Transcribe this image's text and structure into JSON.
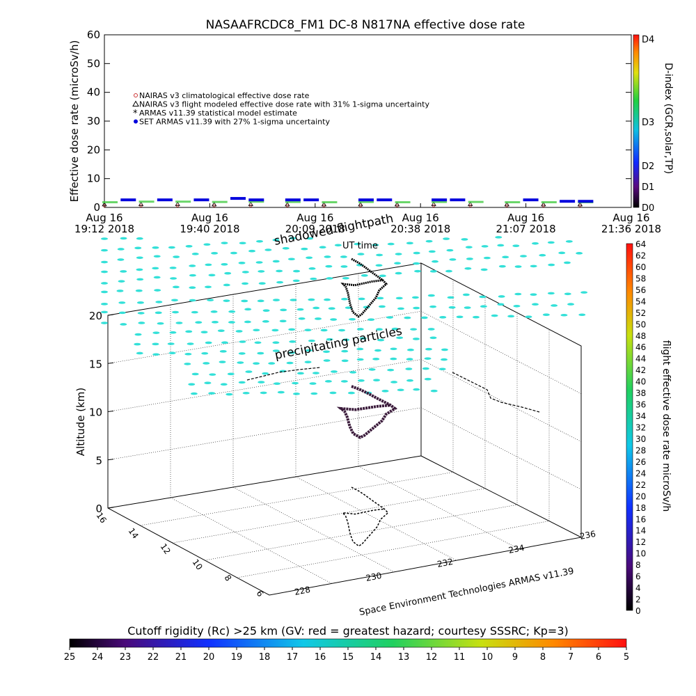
{
  "chart_data": [
    {
      "type": "scatter",
      "title": "NASAAFRCDC8_FM1 DC-8   N817NA effective dose rate",
      "ylabel": "Effective dose rate (microSv/h)",
      "xlabel": "UT time",
      "ylim": [
        0,
        60
      ],
      "yticks": [
        "0",
        "10",
        "20",
        "30",
        "40",
        "50",
        "60"
      ],
      "xticks": [
        {
          "top": "Aug 16",
          "bottom": "19:12 2018"
        },
        {
          "top": "Aug 16",
          "bottom": "19:40 2018"
        },
        {
          "top": "Aug 16",
          "bottom": "20:09 2018"
        },
        {
          "top": "Aug 16",
          "bottom": "20:38 2018"
        },
        {
          "top": "Aug 16",
          "bottom": "21:07 2018"
        },
        {
          "top": "Aug 16",
          "bottom": "21:36 2018"
        }
      ],
      "legend": [
        {
          "name": "NAIRAS v3 climatological effective dose rate",
          "color": "#cc3333",
          "marker": "diamond"
        },
        {
          "name": "NAIRAS v3 flight modeled effective dose rate with 31% 1-sigma uncertainty",
          "color": "#000000",
          "marker": "triangle"
        },
        {
          "name": "ARMAS v11.39 statistical model estimate",
          "color": "#44cc44",
          "marker": "asterisk"
        },
        {
          "name": "SET ARMAS v11.39 with 27% 1-sigma uncertainty",
          "color": "#0000dd",
          "marker": "dot"
        }
      ],
      "series": [
        {
          "name": "NAIRAS v3 climatological effective dose rate",
          "x_minutes": [
            0,
            10,
            20,
            30,
            40,
            50,
            60,
            70,
            80,
            90,
            100,
            110,
            120,
            130
          ],
          "values": [
            0.6,
            0.6,
            0.6,
            0.6,
            0.6,
            0.6,
            0.6,
            0.6,
            0.6,
            0.6,
            0.6,
            0.6,
            0.6,
            0.6
          ]
        },
        {
          "name": "NAIRAS v3 flight modeled effective dose rate with 31% 1-sigma uncertainty",
          "x_minutes": [
            0,
            10,
            20,
            30,
            40,
            50,
            60,
            70,
            80,
            90,
            100,
            110,
            120,
            130
          ],
          "values": [
            1.0,
            1.1,
            1.1,
            1.0,
            1.1,
            1.0,
            1.0,
            1.0,
            1.0,
            1.1,
            1.1,
            1.0,
            1.0,
            1.0
          ]
        },
        {
          "name": "ARMAS v11.39 statistical model estimate",
          "x_minutes": [
            0,
            10,
            20,
            30,
            40,
            50,
            60,
            70,
            80,
            90,
            100,
            110,
            120,
            130
          ],
          "values": [
            1.8,
            2.0,
            2.0,
            1.9,
            2.0,
            1.9,
            1.8,
            1.9,
            1.8,
            1.9,
            1.9,
            1.8,
            1.8,
            1.8
          ]
        },
        {
          "name": "SET ARMAS v11.39 with 27% 1-sigma uncertainty",
          "x_minutes": [
            5,
            15,
            25,
            35,
            40,
            50,
            55,
            70,
            75,
            90,
            95,
            115,
            125,
            130
          ],
          "values": [
            2.5,
            2.5,
            2.5,
            3.0,
            2.5,
            2.5,
            2.5,
            2.5,
            2.5,
            2.5,
            2.5,
            2.5,
            2.0,
            2.0
          ]
        }
      ],
      "right_axis": {
        "label": "D-index (GCR,solar,TP)",
        "ticks": [
          "D0",
          "D1",
          "D2",
          "D3",
          "D4"
        ]
      }
    },
    {
      "type": "scatter",
      "subtype": "3d-trajectory",
      "zlabel": "Altitude (km)",
      "zlim": [
        0,
        20
      ],
      "zticks": [
        "0",
        "5",
        "10",
        "15",
        "20"
      ],
      "yticks": [
        "16",
        "14",
        "12",
        "10",
        "8",
        "6"
      ],
      "xticks": [
        "228",
        "230",
        "232",
        "234",
        "236"
      ],
      "x_axis_caption": "Space Environment Technologies ARMAS v11.39",
      "annotations": [
        "shadowed flightpath",
        "precipitating particles"
      ],
      "colorbar": {
        "label": "flight effective dose rate microSv/h",
        "ticks": [
          "0",
          "2",
          "4",
          "6",
          "8",
          "10",
          "12",
          "14",
          "16",
          "18",
          "20",
          "22",
          "24",
          "26",
          "28",
          "30",
          "32",
          "34",
          "36",
          "38",
          "40",
          "42",
          "44",
          "46",
          "48",
          "50",
          "52",
          "54",
          "56",
          "58",
          "60",
          "62",
          "64"
        ]
      }
    },
    {
      "type": "heatmap",
      "subtype": "colorbar",
      "title": "Cutoff rigidity (Rc) >25 km (GV: red = greatest hazard; courtesy SSSRC; Kp=3)",
      "ticks": [
        "25",
        "24",
        "23",
        "22",
        "21",
        "20",
        "19",
        "18",
        "17",
        "16",
        "15",
        "14",
        "13",
        "12",
        "11",
        "10",
        "9",
        "8",
        "7",
        "6",
        "5"
      ]
    }
  ],
  "colors": {
    "particle": "#33e0d8",
    "flight_track": "#3a1a3a",
    "shadow_track": "#000000"
  }
}
